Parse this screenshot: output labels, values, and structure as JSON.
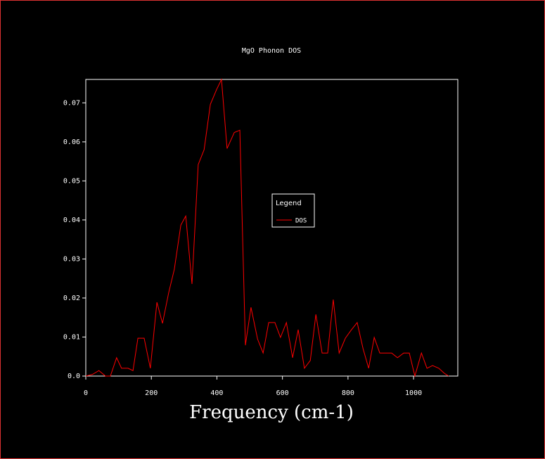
{
  "chart_data": {
    "type": "line",
    "title": "MgO Phonon DOS",
    "x_label": "Frequency (cm-1)",
    "legend_title": "Legend",
    "legend": "center",
    "xlim": [
      0,
      1135
    ],
    "xticks": [
      0,
      200,
      400,
      600,
      800,
      1000
    ],
    "ylim": [
      0,
      0.076
    ],
    "yticks": [
      {
        "value": 0,
        "label": "0.0"
      },
      0.01,
      0.02,
      0.03,
      0.04,
      0.05,
      0.06,
      0.07
    ],
    "x": [
      0,
      20,
      40,
      60,
      75,
      94,
      109,
      129,
      144,
      159,
      178,
      197,
      217,
      234,
      253,
      270,
      290,
      305,
      324,
      343,
      361,
      380,
      399,
      414,
      431,
      453,
      470,
      487,
      504,
      524,
      541,
      558,
      577,
      594,
      612,
      631,
      648,
      667,
      685,
      702,
      721,
      738,
      755,
      773,
      792,
      809,
      828,
      846,
      863,
      880,
      897,
      916,
      933,
      951,
      970,
      987,
      1004,
      1024,
      1041,
      1058,
      1077,
      1094,
      1107
    ],
    "series": [
      {
        "name": "DOS",
        "color": "#ff0000",
        "values": [
          0,
          0.0004,
          0.0014,
          0,
          0,
          0.0047,
          0.002,
          0.002,
          0.0014,
          0.0097,
          0.0097,
          0.002,
          0.0189,
          0.0135,
          0.0214,
          0.0273,
          0.0387,
          0.041,
          0.0236,
          0.0542,
          0.058,
          0.0696,
          0.0734,
          0.076,
          0.0583,
          0.0624,
          0.063,
          0.0079,
          0.0176,
          0.0095,
          0.0059,
          0.0137,
          0.0137,
          0.0099,
          0.0137,
          0.0047,
          0.0119,
          0.002,
          0.004,
          0.0158,
          0.0059,
          0.0059,
          0.0196,
          0.0059,
          0.0097,
          0.0117,
          0.0137,
          0.007,
          0.002,
          0.0099,
          0.0059,
          0.0059,
          0.0059,
          0.0047,
          0.0059,
          0.0059,
          0,
          0.0059,
          0.002,
          0.0027,
          0.002,
          0.0007,
          0
        ]
      }
    ]
  }
}
